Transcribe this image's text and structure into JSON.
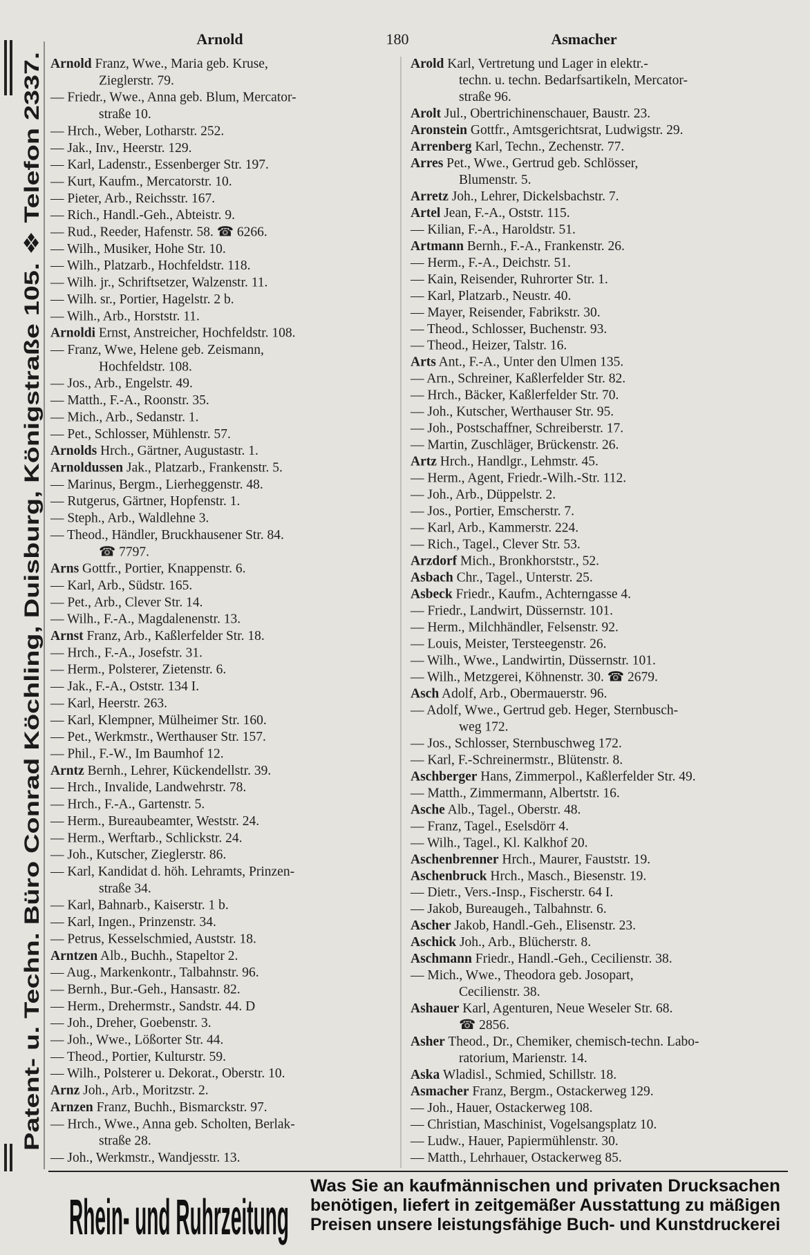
{
  "header": {
    "left": "Arnold",
    "page": "180",
    "right": "Asmacher"
  },
  "sidebar": "Patent- u. Techn. Büro Conrad Köchling, Duisburg, Königstraße 105. ❖ Telefon 2337.",
  "columns": [
    [
      {
        "name": "Arnold",
        "text": "Franz, Wwe., Maria geb. Kruse,"
      },
      "Zieglerstr. 79.",
      "— Friedr., Wwe., Anna geb. Blum, Mercator-",
      "straße 10.",
      "— Hrch., Weber, Lotharstr. 252.",
      "— Jak., Inv., Heerstr. 129.",
      "— Karl, Ladenstr., Essenberger Str. 197.",
      "— Kurt, Kaufm., Mercatorstr. 10.",
      "— Pieter, Arb., Reichsstr. 167.",
      "— Rich., Handl.-Geh., Abteistr. 9.",
      "— Rud., Reeder, Hafenstr. 58. ☎ 6266.",
      "— Wilh., Musiker, Hohe Str. 10.",
      "— Wilh., Platzarb., Hochfeldstr. 118.",
      "— Wilh. jr., Schriftsetzer, Walzenstr. 11.",
      "— Wilh. sr., Portier, Hagelstr. 2 b.",
      "— Wilh., Arb., Horststr. 11.",
      {
        "name": "Arnoldi",
        "text": "Ernst, Anstreicher, Hochfeldstr. 108."
      },
      "— Franz, Wwe, Helene geb. Zeismann,",
      "Hochfeldstr. 108.",
      "— Jos., Arb., Engelstr. 49.",
      "— Matth., F.-A., Roonstr. 35.",
      "— Mich., Arb., Sedanstr. 1.",
      "— Pet., Schlosser, Mühlenstr. 57.",
      {
        "name": "Arnolds",
        "text": "Hrch., Gärtner, Augustastr. 1."
      },
      {
        "name": "Arnoldussen",
        "text": "Jak., Platzarb., Frankenstr. 5."
      },
      "— Marinus, Bergm., Lierheggenstr. 48.",
      "— Rutgerus, Gärtner, Hopfenstr. 1.",
      "— Steph., Arb., Waldlehne 3.",
      "— Theod., Händler, Bruckhausener Str. 84.",
      "☎ 7797.",
      {
        "name": "Arns",
        "text": "Gottfr., Portier, Knappenstr. 6."
      },
      "— Karl, Arb., Südstr. 165.",
      "— Pet., Arb., Clever Str. 14.",
      "— Wilh., F.-A., Magdalenenstr. 13.",
      {
        "name": "Arnst",
        "text": "Franz, Arb., Kaßlerfelder Str. 18."
      },
      "— Hrch., F.-A., Josefstr. 31.",
      "— Herm., Polsterer, Zietenstr. 6.",
      "— Jak., F.-A., Oststr. 134 I.",
      "— Karl, Heerstr. 263.",
      "— Karl, Klempner, Mülheimer Str. 160.",
      "— Pet., Werkmstr., Werthauser Str. 157.",
      "— Phil., F.-W., Im Baumhof 12.",
      {
        "name": "Arntz",
        "text": "Bernh., Lehrer, Kückendellstr. 39."
      },
      "— Hrch., Invalide, Landwehrstr. 78.",
      "— Hrch., F.-A., Gartenstr. 5.",
      "— Herm., Bureaubeamter, Weststr. 24.",
      "— Herm., Werftarb., Schlickstr. 24.",
      "— Joh., Kutscher, Zieglerstr. 86.",
      "— Karl, Kandidat d. höh. Lehramts, Prinzen-",
      "straße 34.",
      "— Karl, Bahnarb., Kaiserstr. 1 b.",
      "— Karl, Ingen., Prinzenstr. 34.",
      "— Petrus, Kesselschmied, Auststr. 18.",
      {
        "name": "Arntzen",
        "text": "Alb., Buchh., Stapeltor 2."
      },
      "— Aug., Markenkontr., Talbahnstr. 96.",
      "— Bernh., Bur.-Geh., Hansastr. 82.",
      "— Herm., Drehermstr., Sandstr. 44. D",
      "— Joh., Dreher, Goebenstr. 3.",
      "— Joh., Wwe., Lößorter Str. 44.",
      "— Theod., Portier, Kulturstr. 59.",
      "— Wilh., Polsterer u. Dekorat., Oberstr. 10.",
      {
        "name": "Arnz",
        "text": "Joh., Arb., Moritzstr. 2."
      },
      {
        "name": "Arnzen",
        "text": "Franz, Buchh., Bismarckstr. 97."
      },
      "— Hrch., Wwe., Anna geb. Scholten, Berlak-",
      "straße 28.",
      "— Joh., Werkmstr., Wandjesstr. 13."
    ],
    [
      {
        "name": "Arold",
        "text": "Karl, Vertretung und Lager in elektr.-"
      },
      "techn. u. techn. Bedarfsartikeln, Mercator-",
      "straße 96.",
      {
        "name": "Arolt",
        "text": "Jul., Obertrichinenschauer, Baustr. 23."
      },
      {
        "name": "Aronstein",
        "text": "Gottfr., Amtsgerichtsrat, Ludwigstr. 29."
      },
      {
        "name": "Arrenberg",
        "text": "Karl, Techn., Zechenstr. 77."
      },
      {
        "name": "Arres",
        "text": "Pet., Wwe., Gertrud geb. Schlösser,"
      },
      "Blumenstr. 5.",
      {
        "name": "Arretz",
        "text": "Joh., Lehrer, Dickelsbachstr. 7."
      },
      {
        "name": "Artel",
        "text": "Jean, F.-A., Oststr. 115."
      },
      "— Kilian, F.-A., Haroldstr. 51.",
      {
        "name": "Artmann",
        "text": "Bernh., F.-A., Frankenstr. 26."
      },
      "— Herm., F.-A., Deichstr. 51.",
      "— Kain, Reisender, Ruhrorter Str. 1.",
      "— Karl, Platzarb., Neustr. 40.",
      "— Mayer, Reisender, Fabrikstr. 30.",
      "— Theod., Schlosser, Buchenstr. 93.",
      "— Theod., Heizer, Talstr. 16.",
      {
        "name": "Arts",
        "text": "Ant., F.-A., Unter den Ulmen 135."
      },
      "— Arn., Schreiner, Kaßlerfelder Str. 82.",
      "— Hrch., Bäcker, Kaßlerfelder Str. 70.",
      "— Joh., Kutscher, Werthauser Str. 95.",
      "— Joh., Postschaffner, Schreiberstr. 17.",
      "— Martin, Zuschläger, Brückenstr. 26.",
      {
        "name": "Artz",
        "text": "Hrch., Handlgr., Lehmstr. 45."
      },
      "— Herm., Agent, Friedr.-Wilh.-Str. 112.",
      "— Joh., Arb., Düppelstr. 2.",
      "— Jos., Portier, Emscherstr. 7.",
      "— Karl, Arb., Kammerstr. 224.",
      "— Rich., Tagel., Clever Str. 53.",
      {
        "name": "Arzdorf",
        "text": "Mich., Bronkhorststr., 52."
      },
      {
        "name": "Asbach",
        "text": "Chr., Tagel., Unterstr. 25."
      },
      {
        "name": "Asbeck",
        "text": "Friedr., Kaufm., Achterngasse 4."
      },
      "— Friedr., Landwirt, Düssernstr. 101.",
      "— Herm., Milchhändler, Felsenstr. 92.",
      "— Louis, Meister, Tersteegenstr. 26.",
      "— Wilh., Wwe., Landwirtin, Düssernstr. 101.",
      "— Wilh., Metzgerei, Köhnenstr. 30. ☎ 2679.",
      {
        "name": "Asch",
        "text": "Adolf, Arb., Obermauerstr. 96."
      },
      "— Adolf, Wwe., Gertrud geb. Heger, Sternbusch-",
      "weg 172.",
      "— Jos., Schlosser, Sternbuschweg 172.",
      "— Karl, F.-Schreinermstr., Blütenstr. 8.",
      {
        "name": "Aschberger",
        "text": "Hans, Zimmerpol., Kaßlerfelder Str. 49."
      },
      "— Matth., Zimmermann, Albertstr. 16.",
      {
        "name": "Asche",
        "text": "Alb., Tagel., Oberstr. 48."
      },
      "— Franz, Tagel., Eselsdörr 4.",
      "— Wilh., Tagel., Kl. Kalkhof 20.",
      {
        "name": "Aschenbrenner",
        "text": "Hrch., Maurer, Fauststr. 19."
      },
      {
        "name": "Aschenbruck",
        "text": "Hrch., Masch., Biesenstr. 19."
      },
      "— Dietr., Vers.-Insp., Fischerstr. 64 I.",
      "— Jakob, Bureaugeh., Talbahnstr. 6.",
      {
        "name": "Ascher",
        "text": "Jakob, Handl.-Geh., Elisenstr. 23."
      },
      {
        "name": "Aschick",
        "text": "Joh., Arb., Blücherstr. 8."
      },
      {
        "name": "Aschmann",
        "text": "Friedr., Handl.-Geh., Cecilienstr. 38."
      },
      "— Mich., Wwe., Theodora geb. Josopart,",
      "Cecilienstr. 38.",
      {
        "name": "Ashauer",
        "text": "Karl, Agenturen, Neue Weseler Str. 68."
      },
      "☎ 2856.",
      {
        "name": "Asher",
        "text": "Theod., Dr., Chemiker, chemisch-techn. Labo-"
      },
      "ratorium, Marienstr. 14.",
      {
        "name": "Aska",
        "text": "Wladisl., Schmied, Schillstr. 18."
      },
      {
        "name": "Asmacher",
        "text": "Franz, Bergm., Ostackerweg 129."
      },
      "— Joh., Hauer, Ostackerweg 108.",
      "— Christian, Maschinist, Vogelsangsplatz 10.",
      "— Ludw., Hauer, Papiermühlenstr. 30.",
      "— Matth., Lehrhauer, Ostackerweg 85."
    ]
  ],
  "footer": {
    "title": "Rhein- und Ruhrzeitung",
    "lines": [
      "Was Sie an kaufmännischen und privaten Drucksachen",
      "benötigen, liefert in zeitgemäßer Ausstattung zu mäßigen",
      "Preisen unsere leistungsfähige Buch- und Kunstdruckerei"
    ]
  }
}
